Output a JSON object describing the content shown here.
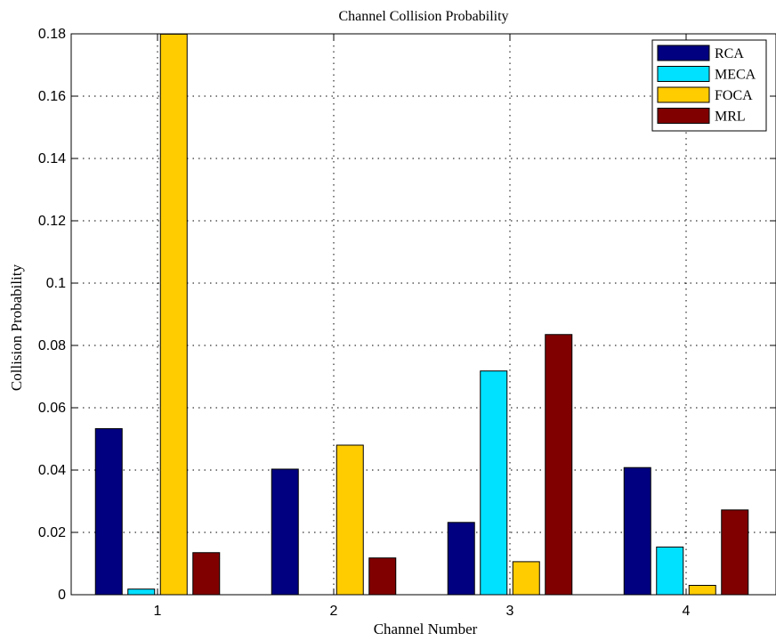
{
  "chart_data": {
    "type": "bar",
    "title": "Channel Collision Probability",
    "xlabel": "Channel Number",
    "ylabel": "Collision Probability",
    "categories": [
      "1",
      "2",
      "3",
      "4"
    ],
    "ylim": [
      0,
      0.18
    ],
    "yticks": [
      "0",
      "0.02",
      "0.04",
      "0.06",
      "0.08",
      "0.1",
      "0.12",
      "0.14",
      "0.16",
      "0.18"
    ],
    "grid": true,
    "legend_position": "top-right",
    "series": [
      {
        "name": "RCA",
        "color": "#000080",
        "values": [
          0.0533,
          0.0403,
          0.0232,
          0.0408
        ]
      },
      {
        "name": "MECA",
        "color": "#00E0FF",
        "values": [
          0.0018,
          0.0,
          0.0718,
          0.0153
        ]
      },
      {
        "name": "FOCA",
        "color": "#FFCC00",
        "values": [
          0.1799,
          0.048,
          0.0106,
          0.003
        ]
      },
      {
        "name": "MRL",
        "color": "#800000",
        "values": [
          0.0135,
          0.0118,
          0.0835,
          0.0272
        ]
      }
    ]
  }
}
